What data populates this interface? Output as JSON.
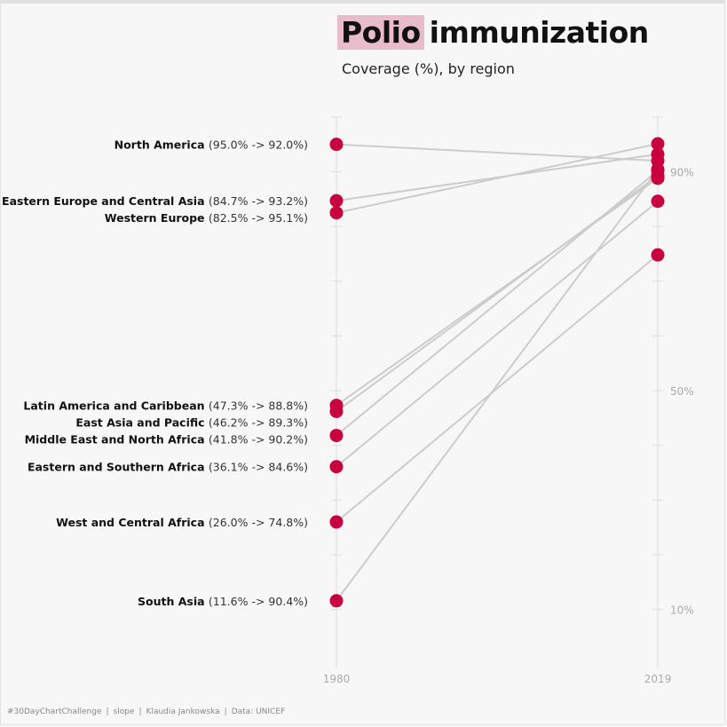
{
  "header": {
    "title_highlight": "Polio",
    "title_rest": "immunization",
    "subtitle": "Coverage (%), by region"
  },
  "colors": {
    "dot": "#c8003f",
    "line": "#cccccc",
    "highlight": "#e8bccb",
    "axis": "#dddddd",
    "tick_label": "#aaaaaa"
  },
  "chart_data": {
    "type": "slope",
    "x": [
      "1980",
      "2019"
    ],
    "y_tick_labels": [
      "90%",
      "50%",
      "10%"
    ],
    "y_ticks": [
      90,
      50,
      10
    ],
    "ylim": [
      5,
      100
    ],
    "series": [
      {
        "name": "North America",
        "range": "(95.0% -> 92.0%)",
        "values": [
          95.0,
          92.0
        ]
      },
      {
        "name": "Eastern Europe and Central Asia",
        "range": "(84.7% -> 93.2%)",
        "values": [
          84.7,
          93.2
        ]
      },
      {
        "name": "Western Europe",
        "range": "(82.5% -> 95.1%)",
        "values": [
          82.5,
          95.1
        ]
      },
      {
        "name": "Latin America and Caribbean",
        "range": "(47.3% -> 88.8%)",
        "values": [
          47.3,
          88.8
        ]
      },
      {
        "name": "East Asia and Pacific",
        "range": "(46.2% -> 89.3%)",
        "values": [
          46.2,
          89.3
        ]
      },
      {
        "name": "Middle East and North Africa",
        "range": "(41.8% -> 90.2%)",
        "values": [
          41.8,
          90.2
        ]
      },
      {
        "name": "Eastern and Southern Africa",
        "range": "(36.1% -> 84.6%)",
        "values": [
          36.1,
          84.6
        ]
      },
      {
        "name": "West and Central Africa",
        "range": "(26.0% -> 74.8%)",
        "values": [
          26.0,
          74.8
        ]
      },
      {
        "name": "South Asia",
        "range": "(11.6% -> 90.4%)",
        "values": [
          11.6,
          90.4
        ]
      }
    ]
  },
  "footer": {
    "items": [
      "#30DayChartChallenge",
      "slope",
      "Klaudia Jankowska",
      "Data: UNICEF"
    ],
    "separator": "|"
  }
}
